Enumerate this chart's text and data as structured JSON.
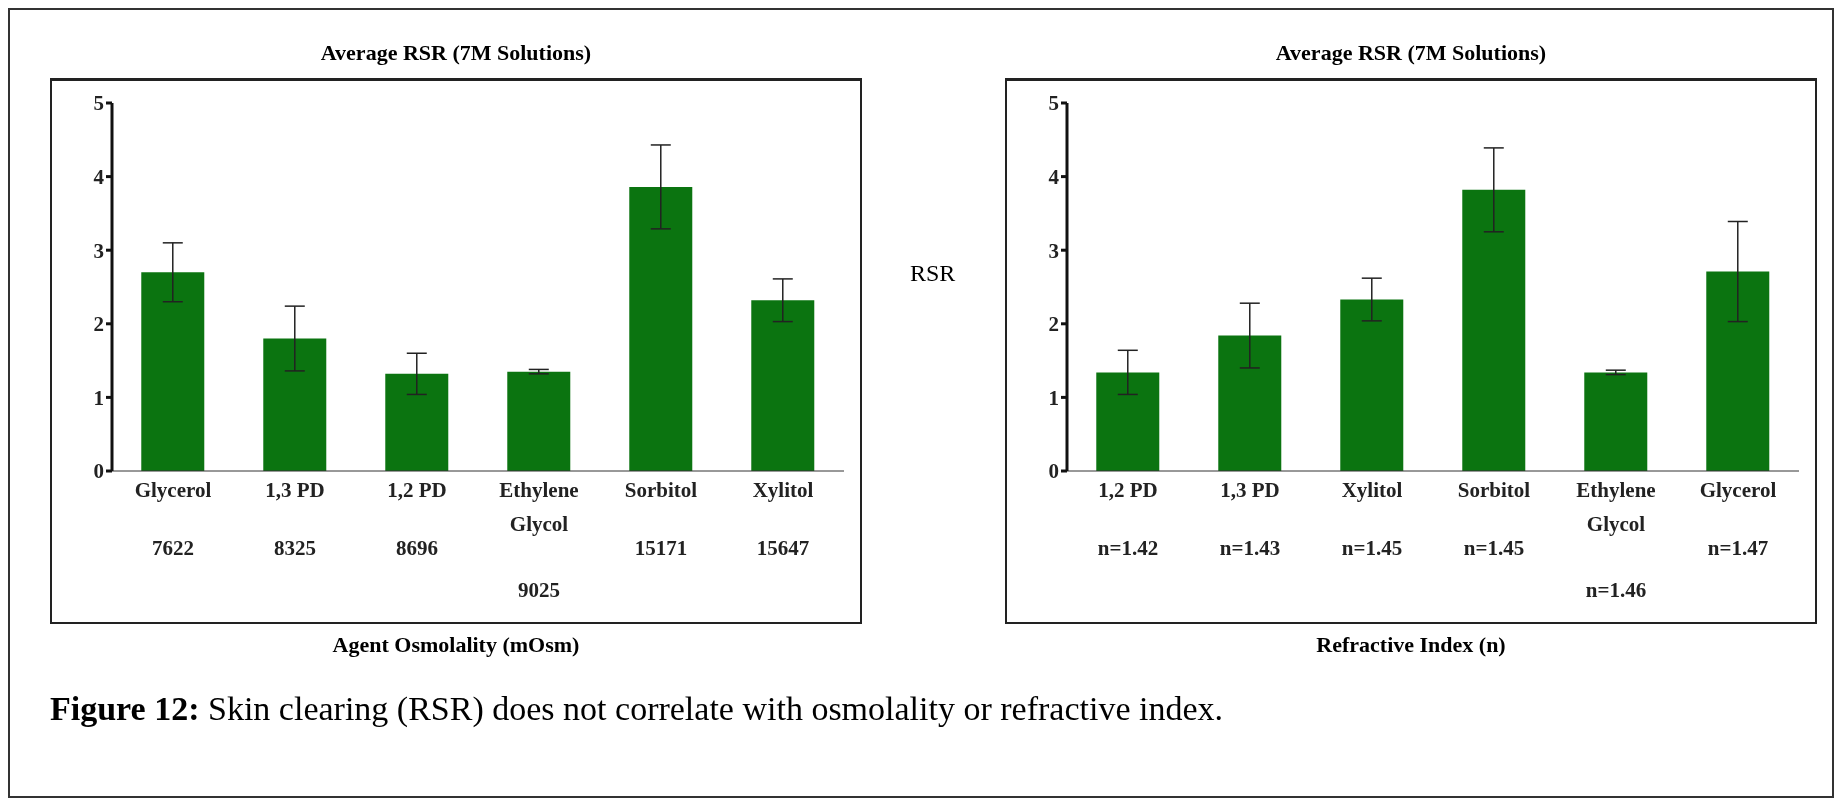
{
  "chart_data": [
    {
      "type": "bar",
      "title": "Average RSR (7M Solutions)",
      "xlabel": "Agent Osmolality  (mOsm)",
      "categories": [
        "Glycerol\n7622",
        "1,3 PD\n8325",
        "1,2 PD\n8696",
        "Ethylene\nGlycol\n9025",
        "Sorbitol\n15171",
        "Xylitol\n15647"
      ],
      "values": [
        2.7,
        1.8,
        1.32,
        1.35,
        3.86,
        2.32
      ],
      "errors": [
        0.4,
        0.44,
        0.28,
        0.03,
        0.57,
        0.29
      ],
      "color": "#0b7410",
      "ylim": [
        0,
        5
      ],
      "yticks": [
        0,
        1,
        2,
        3,
        4,
        5
      ],
      "grid": false,
      "legend": false,
      "annotations": [
        "Figure 12:  Skin clearing (RSR) does not correlate with osmolality or refractive index."
      ]
    },
    {
      "type": "bar",
      "title": "Average RSR (7M Solutions)",
      "xlabel": "Refractive Index (n)",
      "ylabel": "RSR",
      "categories": [
        "1,2 PD\nn=1.42",
        "1,3 PD\nn=1.43",
        "Xylitol\nn=1.45",
        "Sorbitol\nn=1.45",
        "Ethylene\nGlycol\nn=1.46",
        "Glycerol\nn=1.47"
      ],
      "values": [
        1.34,
        1.84,
        2.33,
        3.82,
        1.34,
        2.71
      ],
      "errors": [
        0.3,
        0.44,
        0.29,
        0.57,
        0.03,
        0.68
      ],
      "color": "#0b7410",
      "ylim": [
        0,
        5
      ],
      "yticks": [
        0,
        1,
        2,
        3,
        4,
        5
      ],
      "grid": false,
      "legend": false
    }
  ]
}
